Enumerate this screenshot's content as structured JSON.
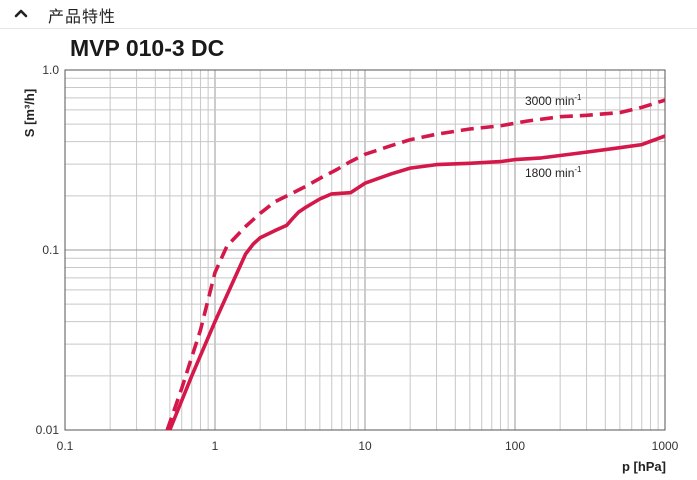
{
  "section": {
    "title": "产品特性",
    "toggle_icon": "chevron-up-icon"
  },
  "chart_data": {
    "type": "line",
    "title": "MVP 010-3 DC",
    "xlabel": "p [hPa]",
    "ylabel": "S  [m³/h]",
    "xscale": "log",
    "yscale": "log",
    "xlim": [
      0.1,
      1000
    ],
    "ylim": [
      0.01,
      1.0
    ],
    "x_tick_labels": [
      "0.1",
      "1",
      "10",
      "100",
      "1000"
    ],
    "y_tick_labels": [
      "0.01",
      "0.1",
      "1.0"
    ],
    "grid": true,
    "line_color": "#d4184a",
    "series": [
      {
        "name": "3000 min-1",
        "label_main": "3000 min",
        "label_sup": "-1",
        "style": "dashed",
        "x": [
          0.48,
          0.6,
          0.8,
          1.0,
          1.2,
          1.6,
          2.0,
          2.5,
          3.2,
          4.0,
          5.0,
          6.5,
          8.0,
          10.0,
          15.0,
          20.0,
          30.0,
          50.0,
          80.0,
          120.0,
          200.0,
          300.0,
          500.0,
          700.0,
          1000.0
        ],
        "y": [
          0.01,
          0.017,
          0.036,
          0.075,
          0.105,
          0.135,
          0.16,
          0.185,
          0.205,
          0.225,
          0.25,
          0.28,
          0.31,
          0.34,
          0.38,
          0.41,
          0.44,
          0.47,
          0.49,
          0.52,
          0.55,
          0.56,
          0.58,
          0.62,
          0.68
        ]
      },
      {
        "name": "1800 min-1",
        "label_main": "1800 min",
        "label_sup": "-1",
        "style": "solid",
        "x": [
          0.5,
          0.7,
          1.0,
          1.3,
          1.6,
          1.8,
          2.0,
          2.5,
          3.0,
          3.3,
          3.6,
          4.0,
          5.0,
          6.0,
          8.0,
          10.0,
          15.0,
          20.0,
          30.0,
          50.0,
          80.0,
          100.0,
          150.0,
          200.0,
          300.0,
          500.0,
          700.0,
          1000.0
        ],
        "y": [
          0.01,
          0.02,
          0.04,
          0.065,
          0.095,
          0.108,
          0.117,
          0.128,
          0.137,
          0.15,
          0.162,
          0.172,
          0.192,
          0.205,
          0.208,
          0.235,
          0.265,
          0.285,
          0.298,
          0.303,
          0.31,
          0.318,
          0.325,
          0.335,
          0.35,
          0.37,
          0.385,
          0.43
        ]
      }
    ]
  }
}
